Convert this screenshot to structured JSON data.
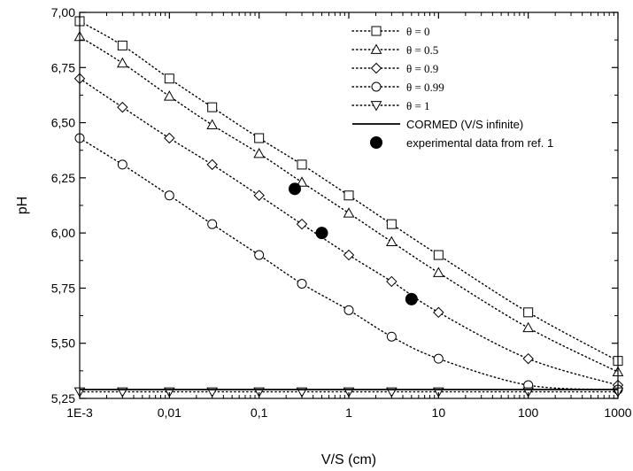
{
  "chart_data": {
    "type": "line",
    "xlabel": "V/S (cm)",
    "ylabel": "pH",
    "x_scale": "log",
    "xlim": [
      0.001,
      1000
    ],
    "ylim": [
      5.25,
      7.0
    ],
    "x_ticks": [
      0.001,
      0.01,
      0.1,
      1,
      10,
      100,
      1000
    ],
    "x_tick_labels": [
      "1E-3",
      "0,01",
      "0,1",
      "1",
      "10",
      "100",
      "1000"
    ],
    "y_ticks": [
      5.25,
      5.5,
      5.75,
      6.0,
      6.25,
      6.5,
      6.75,
      7.0
    ],
    "y_tick_labels": [
      "5,25",
      "5,50",
      "5,75",
      "6,00",
      "6,25",
      "6,50",
      "6,75",
      "7,00"
    ],
    "grid": false,
    "legend_position": "top-right",
    "series": [
      {
        "name": "θ = 0",
        "marker": "square",
        "line_style": "dotted",
        "x": [
          0.001,
          0.003,
          0.01,
          0.03,
          0.1,
          0.3,
          1,
          3,
          10,
          100,
          1000
        ],
        "y": [
          6.96,
          6.85,
          6.7,
          6.57,
          6.43,
          6.31,
          6.17,
          6.04,
          5.9,
          5.64,
          5.42
        ]
      },
      {
        "name": "θ = 0.5",
        "marker": "triangle-up",
        "line_style": "dotted",
        "x": [
          0.001,
          0.003,
          0.01,
          0.03,
          0.1,
          0.3,
          1,
          3,
          10,
          100,
          1000
        ],
        "y": [
          6.89,
          6.77,
          6.62,
          6.49,
          6.36,
          6.23,
          6.09,
          5.96,
          5.82,
          5.57,
          5.37
        ]
      },
      {
        "name": "θ = 0.9",
        "marker": "diamond",
        "line_style": "dotted",
        "x": [
          0.001,
          0.003,
          0.01,
          0.03,
          0.1,
          0.3,
          1,
          3,
          10,
          100,
          1000
        ],
        "y": [
          6.7,
          6.57,
          6.43,
          6.31,
          6.17,
          6.04,
          5.9,
          5.78,
          5.64,
          5.43,
          5.31
        ]
      },
      {
        "name": "θ = 0.99",
        "marker": "circle",
        "line_style": "dotted",
        "x": [
          0.001,
          0.003,
          0.01,
          0.03,
          0.1,
          0.3,
          1,
          3,
          10,
          100,
          1000
        ],
        "y": [
          6.43,
          6.31,
          6.17,
          6.04,
          5.9,
          5.77,
          5.65,
          5.53,
          5.43,
          5.31,
          5.29
        ]
      },
      {
        "name": "θ = 1",
        "marker": "triangle-down",
        "line_style": "dotted",
        "x": [
          0.001,
          0.003,
          0.01,
          0.03,
          0.1,
          0.3,
          1,
          3,
          10,
          100,
          1000
        ],
        "y": [
          5.28,
          5.28,
          5.28,
          5.28,
          5.28,
          5.28,
          5.28,
          5.28,
          5.28,
          5.28,
          5.28
        ]
      },
      {
        "name": "CORMED (V/S infinite)",
        "marker": "none",
        "line_style": "solid",
        "x": [
          0.001,
          1000
        ],
        "y": [
          5.29,
          5.29
        ]
      },
      {
        "name": "experimental data from ref. 1",
        "marker": "filled-circle",
        "line_style": "none",
        "x": [
          0.25,
          0.5,
          5
        ],
        "y": [
          6.2,
          6.0,
          5.7
        ]
      }
    ]
  }
}
